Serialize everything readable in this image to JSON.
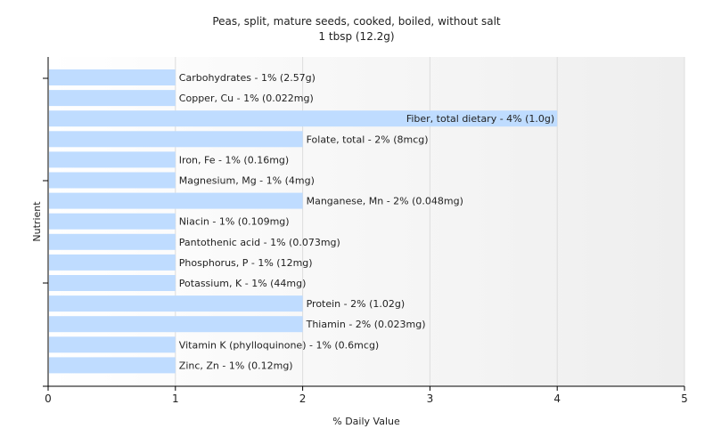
{
  "chart_data": {
    "type": "bar",
    "orientation": "horizontal",
    "title": "Peas, split, mature seeds, cooked, boiled, without salt",
    "subtitle": "1 tbsp (12.2g)",
    "xlabel": "% Daily Value",
    "ylabel": "Nutrient",
    "xlim": [
      0,
      5
    ],
    "xticks": [
      "0",
      "1",
      "2",
      "3",
      "4",
      "5"
    ],
    "grid": true,
    "bar_color": "#bfdcff",
    "categories": [
      "Carbohydrates",
      "Copper, Cu",
      "Fiber, total dietary",
      "Folate, total",
      "Iron, Fe",
      "Magnesium, Mg",
      "Manganese, Mn",
      "Niacin",
      "Pantothenic acid",
      "Phosphorus, P",
      "Potassium, K",
      "Protein",
      "Thiamin",
      "Vitamin K (phylloquinone)",
      "Zinc, Zn"
    ],
    "values": [
      1,
      1,
      4,
      2,
      1,
      1,
      2,
      1,
      1,
      1,
      1,
      2,
      2,
      1,
      1
    ],
    "labels": [
      "Carbohydrates - 1% (2.57g)",
      "Copper, Cu - 1% (0.022mg)",
      "Fiber, total dietary - 4% (1.0g)",
      "Folate, total - 2% (8mcg)",
      "Iron, Fe - 1% (0.16mg)",
      "Magnesium, Mg - 1% (4mg)",
      "Manganese, Mn - 2% (0.048mg)",
      "Niacin - 1% (0.109mg)",
      "Pantothenic acid - 1% (0.073mg)",
      "Phosphorus, P - 1% (12mg)",
      "Potassium, K - 1% (44mg)",
      "Protein - 2% (1.02g)",
      "Thiamin - 2% (0.023mg)",
      "Vitamin K (phylloquinone) - 1% (0.6mcg)",
      "Zinc, Zn - 1% (0.12mg)"
    ]
  }
}
